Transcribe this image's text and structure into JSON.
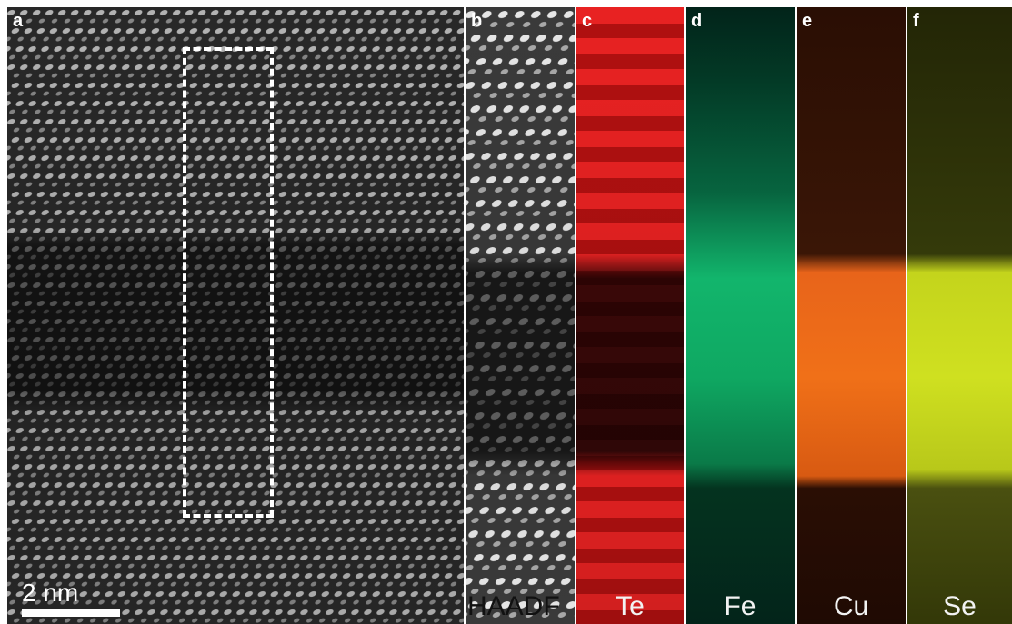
{
  "panels": [
    {
      "letter": "a",
      "label": ""
    },
    {
      "letter": "b",
      "label": "HAADF"
    },
    {
      "letter": "c",
      "label": "Te",
      "color": "#e01818"
    },
    {
      "letter": "d",
      "label": "Fe",
      "color": "#00d27a"
    },
    {
      "letter": "e",
      "label": "Cu",
      "color": "#ff6a10"
    },
    {
      "letter": "f",
      "label": "Se",
      "color": "#cfe020"
    }
  ],
  "scalebar": {
    "label": "2 nm"
  },
  "colors": {
    "background": "#ffffff",
    "haadf_bright": "#d8d8d8",
    "haadf_dark": "#303030"
  }
}
